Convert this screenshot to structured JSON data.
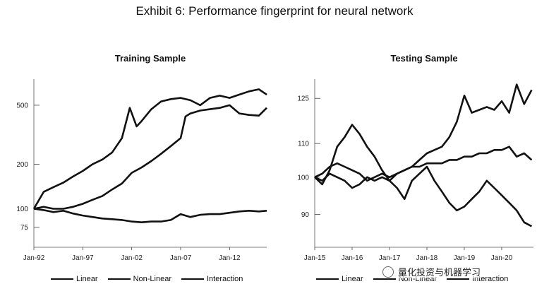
{
  "exhibit_title": "Exhibit 6: Performance fingerprint for neural network",
  "legend": {
    "linear": "Linear",
    "nonlinear": "Non-Linear",
    "interaction": "Interaction"
  },
  "watermark": {
    "text": "量化投资与机器学习",
    "icon": "wechat-icon"
  },
  "chart_data": [
    {
      "type": "line",
      "title": "Training Sample",
      "xlabel": "",
      "ylabel": "",
      "x_ticks": [
        "Jan-92",
        "Jan-97",
        "Jan-02",
        "Jan-07",
        "Jan-12"
      ],
      "x_tick_years": [
        1992,
        1997,
        2002,
        2007,
        2012
      ],
      "x_range": [
        1992,
        2015.8
      ],
      "y_scale": "log",
      "y_ticks": [
        75,
        100,
        200,
        500
      ],
      "y_range": [
        55,
        750
      ],
      "grid": false,
      "legend_position": "bottom",
      "series": [
        {
          "name": "Linear",
          "data": [
            [
              1992.0,
              100
            ],
            [
              1993.0,
              98
            ],
            [
              1994.0,
              95
            ],
            [
              1995.0,
              97
            ],
            [
              1996.0,
              93
            ],
            [
              1997.0,
              90
            ],
            [
              1998.0,
              88
            ],
            [
              1999.0,
              86
            ],
            [
              2000.0,
              85
            ],
            [
              2001.0,
              84
            ],
            [
              2002.0,
              82
            ],
            [
              2003.0,
              81
            ],
            [
              2004.0,
              82
            ],
            [
              2005.0,
              82
            ],
            [
              2006.0,
              84
            ],
            [
              2007.0,
              92
            ],
            [
              2008.0,
              88
            ],
            [
              2009.0,
              91
            ],
            [
              2010.0,
              92
            ],
            [
              2011.0,
              92
            ],
            [
              2012.0,
              94
            ],
            [
              2013.0,
              96
            ],
            [
              2014.0,
              97
            ],
            [
              2015.0,
              96
            ],
            [
              2015.8,
              97
            ]
          ]
        },
        {
          "name": "Non-Linear",
          "data": [
            [
              1992.0,
              100
            ],
            [
              1993.0,
              103
            ],
            [
              1994.0,
              100
            ],
            [
              1995.0,
              100
            ],
            [
              1996.0,
              103
            ],
            [
              1997.0,
              108
            ],
            [
              1998.0,
              115
            ],
            [
              1999.0,
              122
            ],
            [
              2000.0,
              135
            ],
            [
              2001.0,
              148
            ],
            [
              2002.0,
              175
            ],
            [
              2003.0,
              190
            ],
            [
              2004.0,
              210
            ],
            [
              2005.0,
              235
            ],
            [
              2006.0,
              265
            ],
            [
              2007.0,
              300
            ],
            [
              2007.5,
              420
            ],
            [
              2008.0,
              440
            ],
            [
              2009.0,
              460
            ],
            [
              2010.0,
              470
            ],
            [
              2011.0,
              480
            ],
            [
              2012.0,
              500
            ],
            [
              2013.0,
              440
            ],
            [
              2014.0,
              430
            ],
            [
              2015.0,
              425
            ],
            [
              2015.8,
              480
            ]
          ]
        },
        {
          "name": "Interaction",
          "data": [
            [
              1992.0,
              100
            ],
            [
              1993.0,
              130
            ],
            [
              1994.0,
              140
            ],
            [
              1995.0,
              150
            ],
            [
              1996.0,
              165
            ],
            [
              1997.0,
              180
            ],
            [
              1998.0,
              200
            ],
            [
              1999.0,
              215
            ],
            [
              2000.0,
              240
            ],
            [
              2001.0,
              300
            ],
            [
              2001.8,
              480
            ],
            [
              2002.5,
              360
            ],
            [
              2003.0,
              390
            ],
            [
              2004.0,
              470
            ],
            [
              2005.0,
              530
            ],
            [
              2006.0,
              550
            ],
            [
              2007.0,
              560
            ],
            [
              2008.0,
              540
            ],
            [
              2009.0,
              500
            ],
            [
              2010.0,
              560
            ],
            [
              2011.0,
              580
            ],
            [
              2012.0,
              560
            ],
            [
              2013.0,
              590
            ],
            [
              2014.0,
              620
            ],
            [
              2015.0,
              640
            ],
            [
              2015.8,
              590
            ]
          ]
        }
      ]
    },
    {
      "type": "line",
      "title": "Testing Sample",
      "xlabel": "",
      "ylabel": "",
      "x_ticks": [
        "Jan-15",
        "Jan-16",
        "Jan-17",
        "Jan-18",
        "Jan-19",
        "Jan-20"
      ],
      "x_tick_years": [
        2015,
        2016,
        2017,
        2018,
        2019,
        2020
      ],
      "x_range": [
        2015.0,
        2020.85
      ],
      "y_scale": "log",
      "y_ticks": [
        90,
        100,
        110,
        125
      ],
      "y_range": [
        82,
        132
      ],
      "grid": false,
      "legend_position": "bottom",
      "series": [
        {
          "name": "Linear",
          "data": [
            [
              2015.0,
              100
            ],
            [
              2015.2,
              98
            ],
            [
              2015.4,
              102
            ],
            [
              2015.6,
              109
            ],
            [
              2015.8,
              112
            ],
            [
              2016.0,
              116
            ],
            [
              2016.2,
              113
            ],
            [
              2016.4,
              109
            ],
            [
              2016.6,
              106
            ],
            [
              2016.8,
              102
            ],
            [
              2017.0,
              99
            ],
            [
              2017.2,
              97
            ],
            [
              2017.4,
              94
            ],
            [
              2017.6,
              99
            ],
            [
              2017.8,
              101
            ],
            [
              2018.0,
              103
            ],
            [
              2018.2,
              99
            ],
            [
              2018.4,
              96
            ],
            [
              2018.6,
              93
            ],
            [
              2018.8,
              91
            ],
            [
              2019.0,
              92
            ],
            [
              2019.2,
              94
            ],
            [
              2019.4,
              96
            ],
            [
              2019.6,
              99
            ],
            [
              2019.8,
              97
            ],
            [
              2020.0,
              95
            ],
            [
              2020.2,
              93
            ],
            [
              2020.4,
              91
            ],
            [
              2020.6,
              88
            ],
            [
              2020.8,
              87
            ]
          ]
        },
        {
          "name": "Non-Linear",
          "data": [
            [
              2015.0,
              100
            ],
            [
              2015.2,
              101
            ],
            [
              2015.4,
              103
            ],
            [
              2015.6,
              104
            ],
            [
              2015.8,
              103
            ],
            [
              2016.0,
              102
            ],
            [
              2016.2,
              101
            ],
            [
              2016.4,
              99
            ],
            [
              2016.6,
              100
            ],
            [
              2016.8,
              101
            ],
            [
              2017.0,
              100
            ],
            [
              2017.2,
              101
            ],
            [
              2017.4,
              102
            ],
            [
              2017.6,
              103
            ],
            [
              2017.8,
              103
            ],
            [
              2018.0,
              104
            ],
            [
              2018.2,
              104
            ],
            [
              2018.4,
              104
            ],
            [
              2018.6,
              105
            ],
            [
              2018.8,
              105
            ],
            [
              2019.0,
              106
            ],
            [
              2019.2,
              106
            ],
            [
              2019.4,
              107
            ],
            [
              2019.6,
              107
            ],
            [
              2019.8,
              108
            ],
            [
              2020.0,
              108
            ],
            [
              2020.2,
              109
            ],
            [
              2020.4,
              106
            ],
            [
              2020.6,
              107
            ],
            [
              2020.8,
              105
            ]
          ]
        },
        {
          "name": "Interaction",
          "data": [
            [
              2015.0,
              100
            ],
            [
              2015.2,
              99
            ],
            [
              2015.4,
              101
            ],
            [
              2015.6,
              100
            ],
            [
              2015.8,
              99
            ],
            [
              2016.0,
              97
            ],
            [
              2016.2,
              98
            ],
            [
              2016.4,
              100
            ],
            [
              2016.6,
              99
            ],
            [
              2016.8,
              100
            ],
            [
              2017.0,
              99
            ],
            [
              2017.2,
              101
            ],
            [
              2017.4,
              102
            ],
            [
              2017.6,
              103
            ],
            [
              2017.8,
              105
            ],
            [
              2018.0,
              107
            ],
            [
              2018.2,
              108
            ],
            [
              2018.4,
              109
            ],
            [
              2018.6,
              112
            ],
            [
              2018.8,
              117
            ],
            [
              2019.0,
              126
            ],
            [
              2019.2,
              120
            ],
            [
              2019.4,
              121
            ],
            [
              2019.6,
              122
            ],
            [
              2019.8,
              121
            ],
            [
              2020.0,
              124
            ],
            [
              2020.2,
              120
            ],
            [
              2020.4,
              130
            ],
            [
              2020.6,
              123
            ],
            [
              2020.8,
              128
            ]
          ]
        }
      ]
    }
  ]
}
